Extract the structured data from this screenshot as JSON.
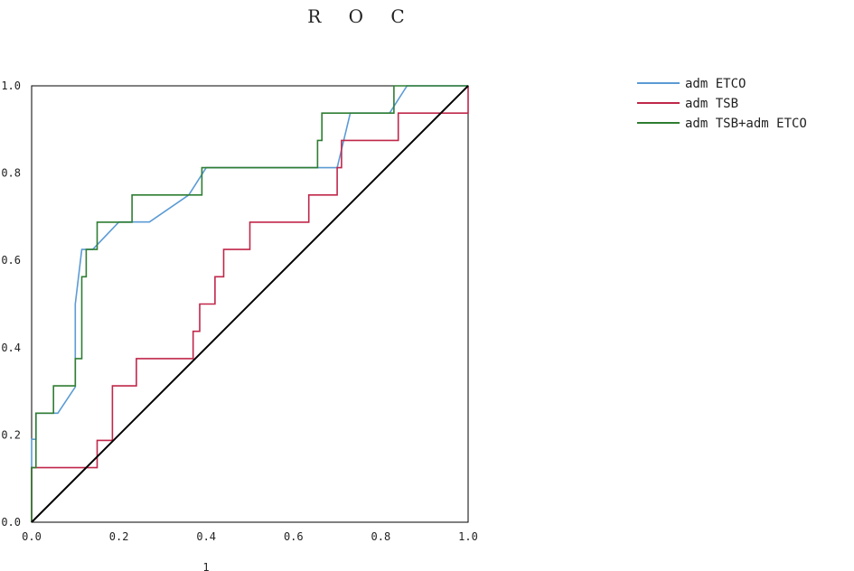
{
  "chart_data": {
    "type": "line",
    "title": "R O C",
    "xlabel": "1",
    "ylabel": "",
    "xlim": [
      0,
      1
    ],
    "ylim": [
      0,
      1
    ],
    "x_ticks": [
      "0.0",
      "0.2",
      "0.4",
      "0.6",
      "0.8",
      "1.0"
    ],
    "y_ticks": [
      "0.0",
      "0.2",
      "0.4",
      "0.6",
      "0.8",
      "1.0"
    ],
    "legend_position": "top-right",
    "grid": false,
    "series": [
      {
        "name": "adm ETCO",
        "color": "#5b9bd5",
        "points": [
          [
            0,
            0
          ],
          [
            0,
            0.19
          ],
          [
            0.01,
            0.19
          ],
          [
            0.01,
            0.25
          ],
          [
            0.06,
            0.25
          ],
          [
            0.1,
            0.31
          ],
          [
            0.1,
            0.5
          ],
          [
            0.115,
            0.625
          ],
          [
            0.14,
            0.625
          ],
          [
            0.2,
            0.688
          ],
          [
            0.27,
            0.688
          ],
          [
            0.36,
            0.75
          ],
          [
            0.4,
            0.8125
          ],
          [
            0.7,
            0.8125
          ],
          [
            0.73,
            0.9375
          ],
          [
            0.82,
            0.9375
          ],
          [
            0.86,
            1.0
          ],
          [
            1.0,
            1.0
          ]
        ]
      },
      {
        "name": "adm TSB",
        "color": "#c0274a",
        "points": [
          [
            0,
            0
          ],
          [
            0,
            0.125
          ],
          [
            0.15,
            0.125
          ],
          [
            0.15,
            0.1875
          ],
          [
            0.185,
            0.1875
          ],
          [
            0.185,
            0.3125
          ],
          [
            0.24,
            0.3125
          ],
          [
            0.24,
            0.375
          ],
          [
            0.37,
            0.375
          ],
          [
            0.37,
            0.4375
          ],
          [
            0.385,
            0.4375
          ],
          [
            0.385,
            0.5
          ],
          [
            0.42,
            0.5
          ],
          [
            0.42,
            0.5625
          ],
          [
            0.44,
            0.5625
          ],
          [
            0.44,
            0.625
          ],
          [
            0.5,
            0.625
          ],
          [
            0.5,
            0.6875
          ],
          [
            0.635,
            0.6875
          ],
          [
            0.635,
            0.75
          ],
          [
            0.7,
            0.75
          ],
          [
            0.7,
            0.8125
          ],
          [
            0.71,
            0.8125
          ],
          [
            0.71,
            0.875
          ],
          [
            0.84,
            0.875
          ],
          [
            0.84,
            0.9375
          ],
          [
            1.0,
            0.9375
          ],
          [
            1.0,
            1.0
          ]
        ]
      },
      {
        "name": "adm TSB+adm ETCO",
        "color": "#2e7d32",
        "points": [
          [
            0,
            0
          ],
          [
            0,
            0.125
          ],
          [
            0.01,
            0.125
          ],
          [
            0.01,
            0.25
          ],
          [
            0.05,
            0.25
          ],
          [
            0.05,
            0.3125
          ],
          [
            0.1,
            0.3125
          ],
          [
            0.1,
            0.375
          ],
          [
            0.115,
            0.375
          ],
          [
            0.115,
            0.5625
          ],
          [
            0.125,
            0.5625
          ],
          [
            0.125,
            0.625
          ],
          [
            0.15,
            0.625
          ],
          [
            0.15,
            0.6875
          ],
          [
            0.23,
            0.6875
          ],
          [
            0.23,
            0.75
          ],
          [
            0.39,
            0.75
          ],
          [
            0.39,
            0.8125
          ],
          [
            0.655,
            0.8125
          ],
          [
            0.655,
            0.875
          ],
          [
            0.665,
            0.875
          ],
          [
            0.665,
            0.9375
          ],
          [
            0.83,
            0.9375
          ],
          [
            0.83,
            1.0
          ],
          [
            1.0,
            1.0
          ]
        ]
      },
      {
        "name": "",
        "color": "#000000",
        "points": [
          [
            0,
            0
          ],
          [
            1,
            1
          ]
        ]
      }
    ]
  }
}
